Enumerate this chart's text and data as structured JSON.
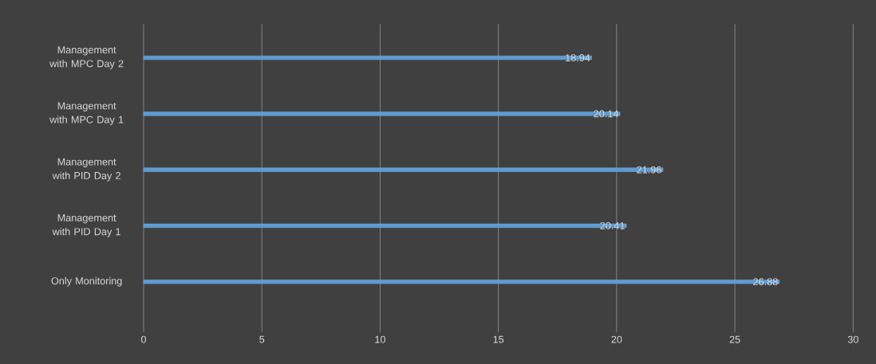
{
  "chart_data": {
    "type": "bar",
    "orientation": "horizontal",
    "categories": [
      "Management with MPC Day 2",
      "Management with MPC Day 1",
      "Management with PID Day 2",
      "Management with PID Day 1",
      "Only Monitoring"
    ],
    "values": [
      18.94,
      20.14,
      21.96,
      20.41,
      26.88
    ],
    "color": "#5b9bd5",
    "xlim": [
      0,
      30
    ],
    "xticks": [
      0,
      5,
      10,
      15,
      20,
      25,
      30
    ],
    "grid": "x",
    "data_labels": true
  }
}
